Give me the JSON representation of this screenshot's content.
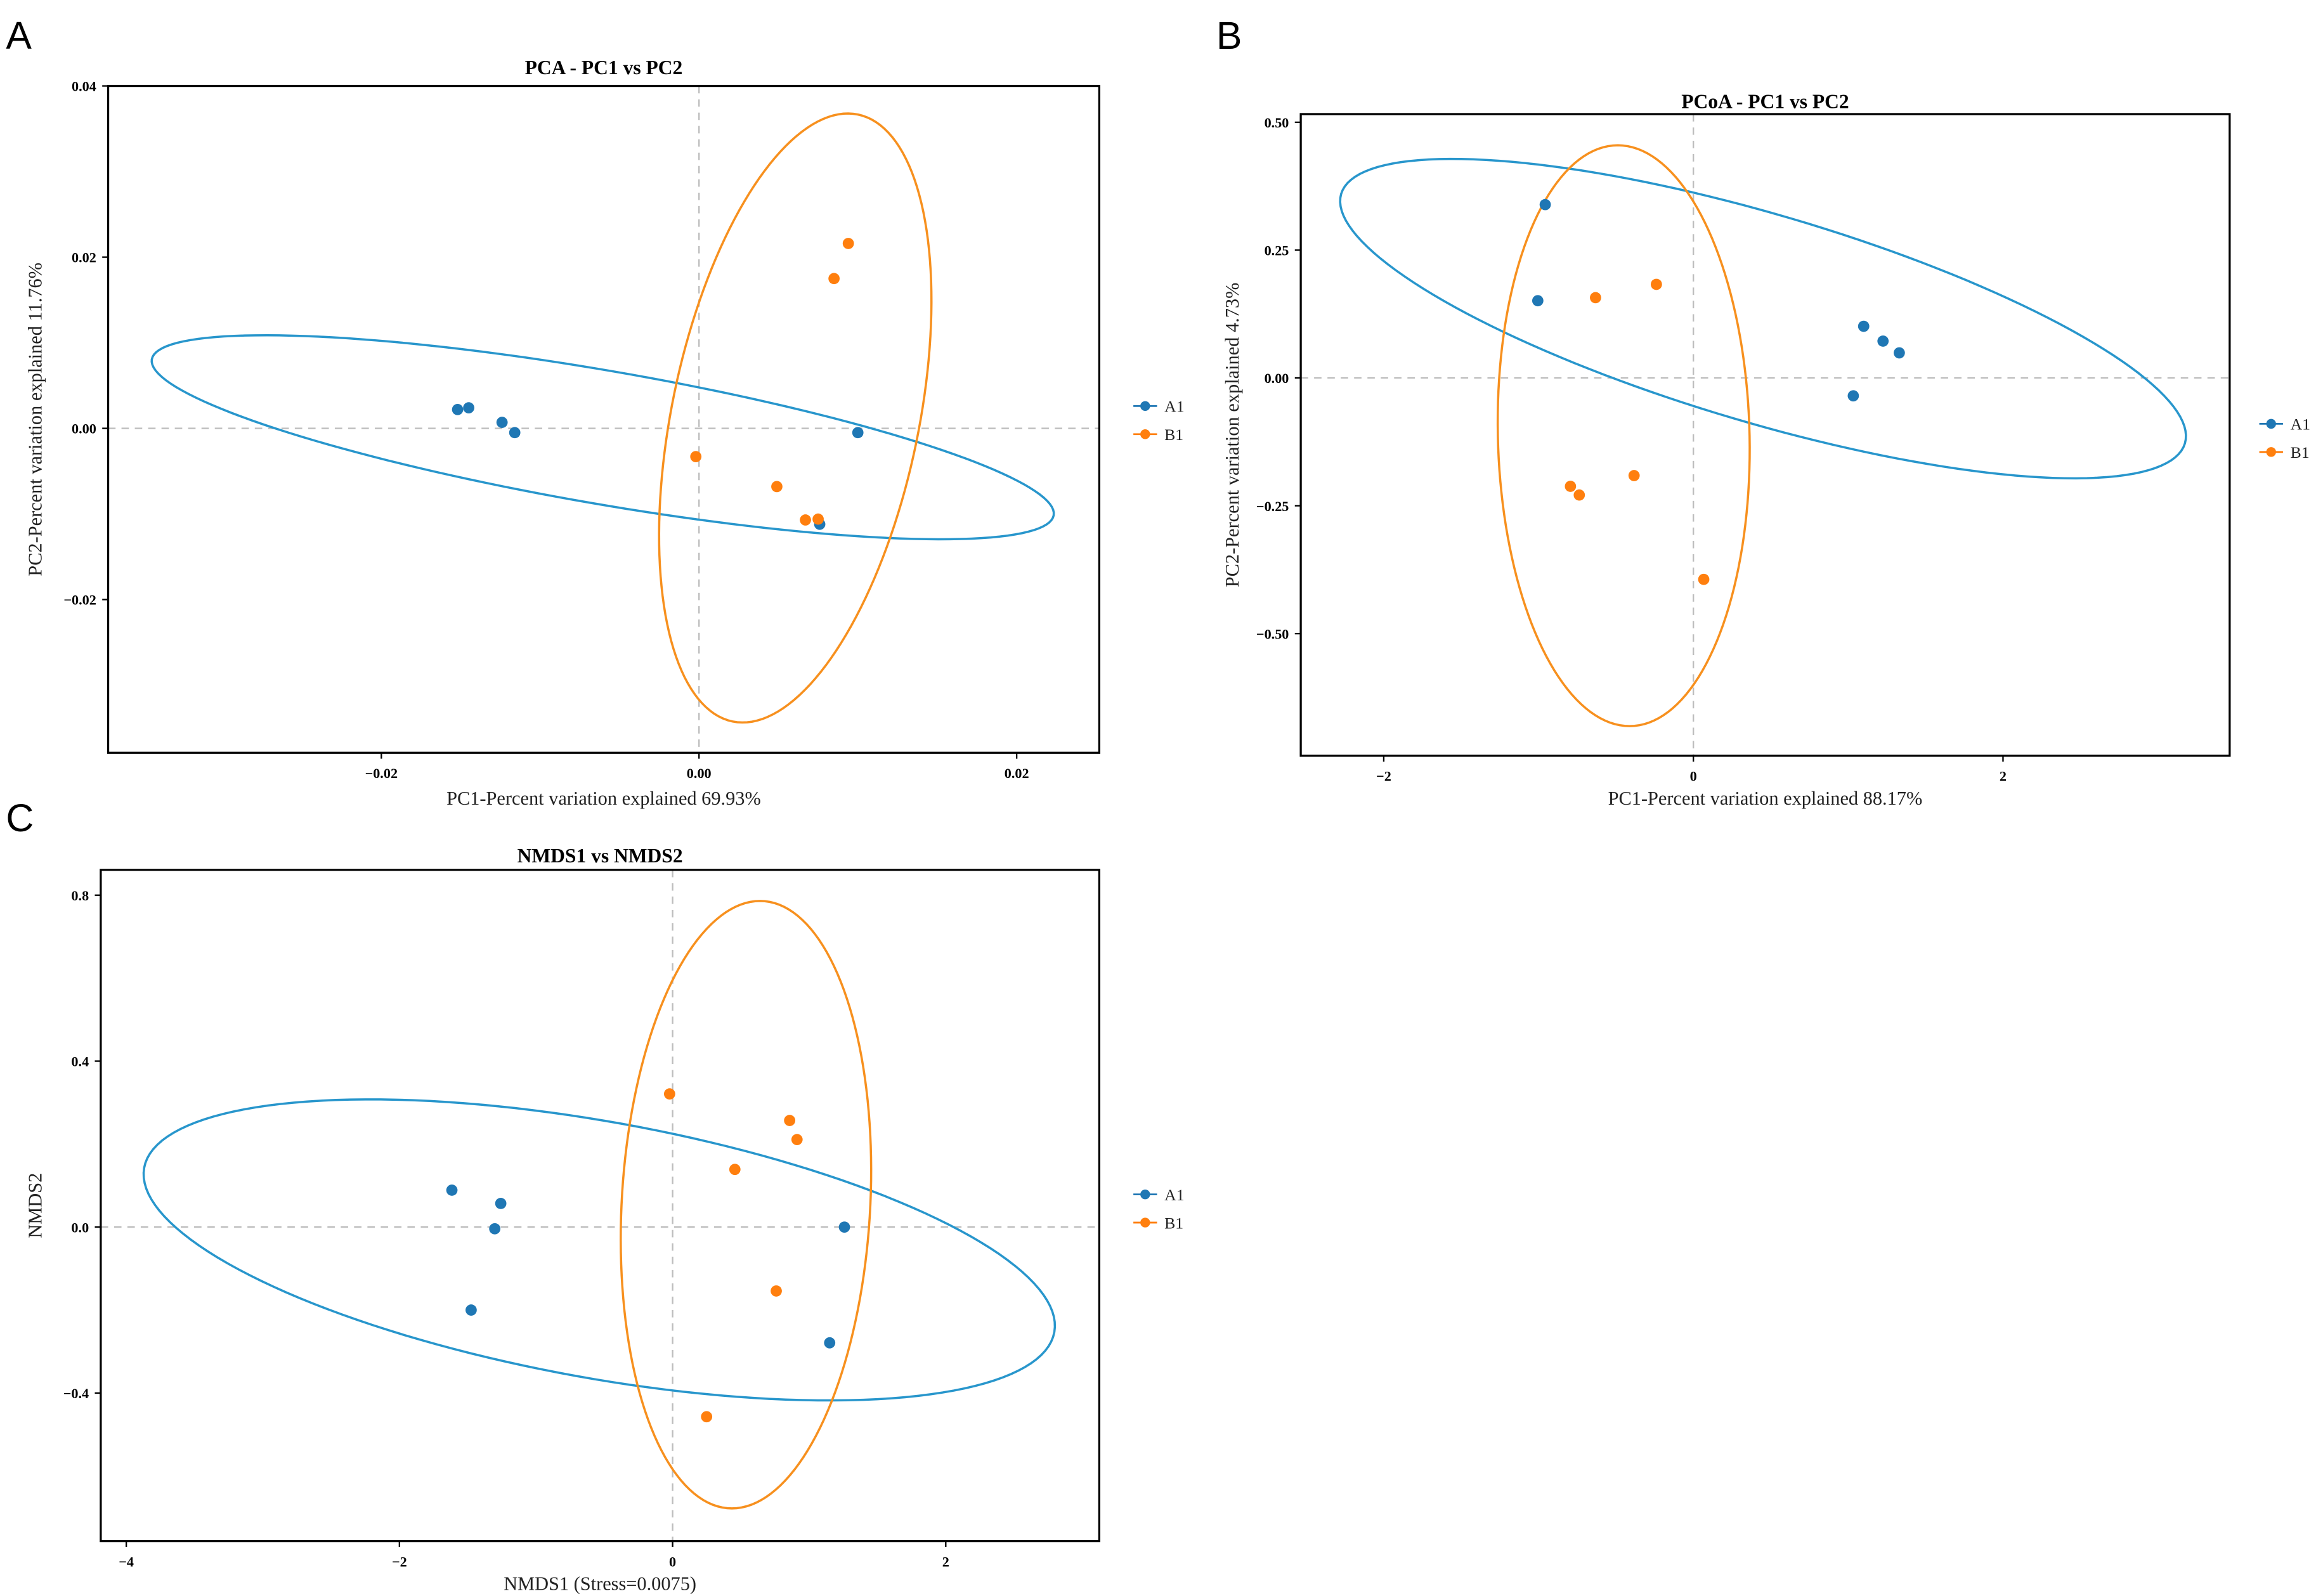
{
  "chart_data": [
    {
      "panel_label": "A",
      "type": "scatter",
      "title": "PCA - PC1 vs PC2",
      "xlabel": "PC1-Percent variation explained 69.93%",
      "ylabel": "PC2-Percent variation explained 11.76%",
      "xlim": [
        -0.0372,
        0.0252
      ],
      "ylim": [
        -0.0379,
        0.04
      ],
      "xticks": [
        {
          "value": -0.02,
          "label": "−0.02"
        },
        {
          "value": 0,
          "label": "0.00"
        },
        {
          "value": 0.02,
          "label": "0.02"
        }
      ],
      "yticks": [
        {
          "value": -0.02,
          "label": "−0.02"
        },
        {
          "value": 0,
          "label": "0.00"
        },
        {
          "value": 0.02,
          "label": "0.02"
        },
        {
          "value": 0.04,
          "label": "0.04"
        }
      ],
      "reference_lines": {
        "x": 0,
        "y": 0
      },
      "legend": "right",
      "series": [
        {
          "name": "A1",
          "color": "#1f77b4",
          "ellipse_color": "#2896cc",
          "x": [
            -0.0152,
            -0.0145,
            -0.0124,
            -0.0116,
            0.01,
            0.0076
          ],
          "y": [
            0.0022,
            0.0024,
            0.0007,
            -0.0005,
            -0.0005,
            -0.0112
          ],
          "ellipse": {
            "center": [
              -0.00606,
              -0.00104
            ],
            "u": [
              0.02839,
              -0.00911
            ],
            "v": [
              -0.00071,
              -0.00768
            ]
          }
        },
        {
          "name": "B1",
          "color": "#ff7f0e",
          "ellipse_color": "#f7901e",
          "x": [
            0.0094,
            0.0085,
            -0.0002,
            0.0049,
            0.0067,
            0.0075
          ],
          "y": [
            0.0216,
            0.0175,
            -0.0033,
            -0.0068,
            -0.0107,
            -0.0106
          ],
          "ellipse": {
            "center": [
              0.00606,
              0.00121
            ],
            "u": [
              0.00395,
              0.03545
            ],
            "v": [
              0.00761,
              -0.00293
            ]
          }
        }
      ]
    },
    {
      "panel_label": "B",
      "type": "scatter",
      "title": "PCoA - PC1 vs PC2",
      "xlabel": "PC1-Percent variation explained 88.17%",
      "ylabel": "PC2-Percent variation explained 4.73%",
      "xlim": [
        -2.536,
        3.464
      ],
      "ylim": [
        -0.739,
        0.516
      ],
      "xticks": [
        {
          "value": -2,
          "label": "−2"
        },
        {
          "value": 0,
          "label": "0"
        },
        {
          "value": 2,
          "label": "2"
        }
      ],
      "yticks": [
        {
          "value": -0.5,
          "label": "−0.50"
        },
        {
          "value": -0.25,
          "label": "−0.25"
        },
        {
          "value": 0,
          "label": "0.00"
        },
        {
          "value": 0.25,
          "label": "0.25"
        },
        {
          "value": 0.5,
          "label": "0.50"
        }
      ],
      "reference_lines": {
        "x": 0,
        "y": 0
      },
      "legend": "right",
      "series": [
        {
          "name": "A1",
          "color": "#1f77b4",
          "ellipse_color": "#2896cc",
          "x": [
            -0.957,
            -1.005,
            1.1,
            1.225,
            1.33,
            1.033
          ],
          "y": [
            0.339,
            0.151,
            0.101,
            0.072,
            0.049,
            -0.035
          ],
          "ellipse": {
            "center": [
              0.45,
              0.116
            ],
            "u": [
              2.725,
              -0.244
            ],
            "v": [
              -0.191,
              -0.195
            ]
          }
        },
        {
          "name": "B1",
          "color": "#ff7f0e",
          "ellipse_color": "#f7901e",
          "x": [
            -0.239,
            -0.632,
            -0.383,
            -0.794,
            -0.737,
            0.067
          ],
          "y": [
            0.183,
            0.157,
            -0.191,
            -0.212,
            -0.229,
            -0.394
          ],
          "ellipse": {
            "center": [
              -0.45,
              -0.113
            ],
            "u": [
              -0.038,
              0.568
            ],
            "v": [
              0.813,
              0
            ]
          }
        }
      ]
    },
    {
      "panel_label": "C",
      "type": "scatter",
      "title": "NMDS1 vs NMDS2",
      "xlabel": "NMDS1 (Stress=0.0075)",
      "ylabel": "NMDS2",
      "xlim": [
        -4.187,
        3.124
      ],
      "ylim": [
        -0.757,
        0.861
      ],
      "xticks": [
        {
          "value": -4,
          "label": "−4"
        },
        {
          "value": -2,
          "label": "−2"
        },
        {
          "value": 0,
          "label": "0"
        },
        {
          "value": 2,
          "label": "2"
        }
      ],
      "yticks": [
        {
          "value": -0.4,
          "label": "−0.4"
        },
        {
          "value": 0,
          "label": "0.0"
        },
        {
          "value": 0.4,
          "label": "0.4"
        },
        {
          "value": 0.8,
          "label": "0.8"
        }
      ],
      "reference_lines": {
        "x": 0,
        "y": 0
      },
      "legend": "right",
      "series": [
        {
          "name": "A1",
          "color": "#1f77b4",
          "ellipse_color": "#2896cc",
          "x": [
            -1.616,
            -1.258,
            -1.302,
            -1.475,
            1.258,
            1.15
          ],
          "y": [
            0.089,
            0.057,
            -0.004,
            -0.2,
            0.0,
            -0.279
          ],
          "ellipse": {
            "center": [
              -0.537,
              -0.055
            ],
            "u": [
              3.332,
              -0.198
            ],
            "v": [
              -0.166,
              -0.304
            ]
          }
        },
        {
          "name": "B1",
          "color": "#ff7f0e",
          "ellipse_color": "#f7901e",
          "x": [
            -0.022,
            0.857,
            0.911,
            0.456,
            0.759,
            0.249
          ],
          "y": [
            0.321,
            0.257,
            0.211,
            0.139,
            -0.154,
            -0.457
          ],
          "ellipse": {
            "center": [
              0.537,
              0.054
            ],
            "u": [
              0.103,
              0.732
            ],
            "v": [
              0.911,
              0
            ]
          }
        }
      ]
    }
  ]
}
